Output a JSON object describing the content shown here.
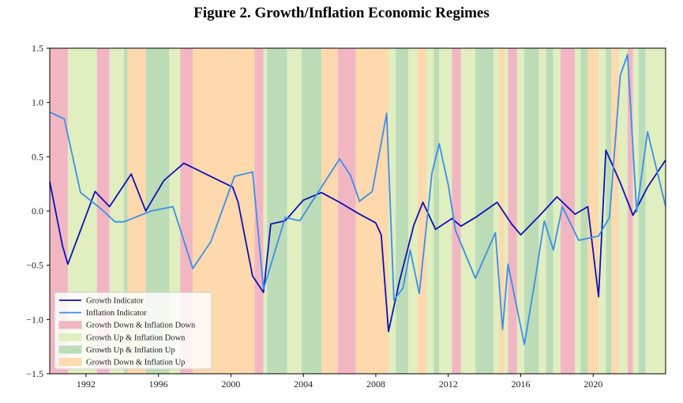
{
  "chart_data": {
    "type": "line",
    "title": "Figure 2. Growth/Inflation Economic Regimes",
    "xlim": [
      1990.0,
      2024.0
    ],
    "ylim": [
      -1.5,
      1.5
    ],
    "x_ticks": [
      1992,
      1996,
      2000,
      2004,
      2008,
      2012,
      2016,
      2020
    ],
    "y_ticks": [
      1.5,
      1.0,
      0.5,
      0.0,
      -0.5,
      -1.0,
      -1.5
    ],
    "y_tick_labels": [
      "1.5",
      "1.0",
      "0.5",
      "0.0",
      "−0.5",
      "−1.0",
      "−1.5"
    ],
    "grid": false,
    "legend_position": "lower-left",
    "regime_legend": [
      {
        "key": "gd_id",
        "label": "Growth Down & Inflation Down",
        "color": "#f2b6c3"
      },
      {
        "key": "gu_id",
        "label": "Growth Up & Inflation Down",
        "color": "#e0eec0"
      },
      {
        "key": "gu_iu",
        "label": "Growth Up & Inflation Up",
        "color": "#bcdcb8"
      },
      {
        "key": "gd_iu",
        "label": "Growth Down & Inflation Up",
        "color": "#fdd9ad"
      }
    ],
    "regimes": [
      {
        "start": 1990.0,
        "end": 1991.0,
        "key": "gd_id"
      },
      {
        "start": 1991.0,
        "end": 1992.6,
        "key": "gu_id"
      },
      {
        "start": 1992.6,
        "end": 1993.3,
        "key": "gd_id"
      },
      {
        "start": 1993.3,
        "end": 1994.1,
        "key": "gu_id"
      },
      {
        "start": 1994.1,
        "end": 1994.3,
        "key": "gu_iu"
      },
      {
        "start": 1994.3,
        "end": 1995.3,
        "key": "gd_iu"
      },
      {
        "start": 1995.3,
        "end": 1996.6,
        "key": "gu_iu"
      },
      {
        "start": 1996.6,
        "end": 1997.2,
        "key": "gu_id"
      },
      {
        "start": 1997.2,
        "end": 1997.9,
        "key": "gd_id"
      },
      {
        "start": 1997.9,
        "end": 2001.3,
        "key": "gd_iu"
      },
      {
        "start": 2001.3,
        "end": 2001.8,
        "key": "gd_id"
      },
      {
        "start": 2001.8,
        "end": 2002.0,
        "key": "gu_id"
      },
      {
        "start": 2002.0,
        "end": 2003.1,
        "key": "gu_iu"
      },
      {
        "start": 2003.1,
        "end": 2003.9,
        "key": "gu_id"
      },
      {
        "start": 2003.9,
        "end": 2005.0,
        "key": "gu_iu"
      },
      {
        "start": 2005.0,
        "end": 2005.9,
        "key": "gd_iu"
      },
      {
        "start": 2005.9,
        "end": 2006.9,
        "key": "gd_id"
      },
      {
        "start": 2006.9,
        "end": 2008.7,
        "key": "gd_iu"
      },
      {
        "start": 2008.7,
        "end": 2009.1,
        "key": "gu_id"
      },
      {
        "start": 2009.1,
        "end": 2009.8,
        "key": "gu_iu"
      },
      {
        "start": 2009.8,
        "end": 2010.3,
        "key": "gu_id"
      },
      {
        "start": 2010.3,
        "end": 2010.8,
        "key": "gd_iu"
      },
      {
        "start": 2010.8,
        "end": 2011.2,
        "key": "gu_id"
      },
      {
        "start": 2011.2,
        "end": 2011.5,
        "key": "gu_iu"
      },
      {
        "start": 2011.5,
        "end": 2012.2,
        "key": "gu_id"
      },
      {
        "start": 2012.2,
        "end": 2012.7,
        "key": "gd_id"
      },
      {
        "start": 2012.7,
        "end": 2013.5,
        "key": "gu_id"
      },
      {
        "start": 2013.5,
        "end": 2014.5,
        "key": "gu_iu"
      },
      {
        "start": 2014.5,
        "end": 2014.8,
        "key": "gu_id"
      },
      {
        "start": 2014.8,
        "end": 2015.1,
        "key": "gd_iu"
      },
      {
        "start": 2015.1,
        "end": 2015.3,
        "key": "gu_id"
      },
      {
        "start": 2015.3,
        "end": 2015.8,
        "key": "gd_id"
      },
      {
        "start": 2015.8,
        "end": 2016.2,
        "key": "gu_id"
      },
      {
        "start": 2016.2,
        "end": 2017.0,
        "key": "gu_iu"
      },
      {
        "start": 2017.0,
        "end": 2017.4,
        "key": "gu_id"
      },
      {
        "start": 2017.4,
        "end": 2017.8,
        "key": "gu_iu"
      },
      {
        "start": 2017.8,
        "end": 2018.2,
        "key": "gu_id"
      },
      {
        "start": 2018.2,
        "end": 2019.0,
        "key": "gd_id"
      },
      {
        "start": 2019.0,
        "end": 2019.3,
        "key": "gu_id"
      },
      {
        "start": 2019.3,
        "end": 2019.7,
        "key": "gu_iu"
      },
      {
        "start": 2019.7,
        "end": 2020.3,
        "key": "gd_iu"
      },
      {
        "start": 2020.3,
        "end": 2020.7,
        "key": "gu_id"
      },
      {
        "start": 2020.7,
        "end": 2021.0,
        "key": "gu_iu"
      },
      {
        "start": 2021.0,
        "end": 2021.4,
        "key": "gd_iu"
      },
      {
        "start": 2021.4,
        "end": 2021.9,
        "key": "gu_id"
      },
      {
        "start": 2021.9,
        "end": 2022.2,
        "key": "gd_id"
      },
      {
        "start": 2022.2,
        "end": 2022.5,
        "key": "gu_id"
      },
      {
        "start": 2022.5,
        "end": 2022.9,
        "key": "gu_iu"
      },
      {
        "start": 2022.9,
        "end": 2024.0,
        "key": "gu_id"
      }
    ],
    "series": [
      {
        "name": "Growth Indicator",
        "color": "#1010b4",
        "x": [
          1990.0,
          1990.7,
          1991.0,
          1992.5,
          1993.3,
          1994.5,
          1995.3,
          1996.3,
          1997.4,
          2000.1,
          2000.4,
          2001.2,
          2001.8,
          2002.2,
          2003.0,
          2004.0,
          2005.0,
          2006.0,
          2007.0,
          2008.0,
          2008.3,
          2008.7,
          2009.3,
          2010.1,
          2010.6,
          2011.3,
          2012.2,
          2012.7,
          2013.5,
          2014.7,
          2015.5,
          2016.0,
          2017.0,
          2018.0,
          2019.0,
          2019.7,
          2020.3,
          2020.7,
          2021.5,
          2022.2,
          2023.0,
          2024.0
        ],
        "y": [
          0.27,
          -0.32,
          -0.49,
          0.18,
          0.04,
          0.34,
          0.0,
          0.28,
          0.44,
          0.22,
          0.08,
          -0.6,
          -0.75,
          -0.12,
          -0.09,
          0.1,
          0.17,
          0.08,
          -0.02,
          -0.11,
          -0.22,
          -1.11,
          -0.65,
          -0.13,
          0.08,
          -0.17,
          -0.07,
          -0.14,
          -0.06,
          0.08,
          -0.12,
          -0.22,
          -0.05,
          0.13,
          -0.03,
          0.04,
          -0.79,
          0.56,
          0.26,
          -0.04,
          0.22,
          0.47
        ]
      },
      {
        "name": "Inflation Indicator",
        "color": "#3b8fe8",
        "x": [
          1990.0,
          1990.8,
          1991.7,
          1992.9,
          1993.6,
          1994.1,
          1995.6,
          1996.8,
          1997.9,
          1998.9,
          2000.2,
          2001.2,
          2001.8,
          2003.0,
          2003.8,
          2006.0,
          2006.6,
          2007.1,
          2007.8,
          2008.6,
          2009.0,
          2009.5,
          2009.9,
          2010.4,
          2011.1,
          2011.5,
          2012.0,
          2012.4,
          2013.5,
          2014.6,
          2015.0,
          2015.3,
          2016.2,
          2016.8,
          2017.3,
          2017.8,
          2018.3,
          2019.2,
          2020.3,
          2020.9,
          2021.5,
          2021.9,
          2022.4,
          2023.0,
          2024.0
        ],
        "y": [
          0.91,
          0.85,
          0.17,
          0.01,
          -0.1,
          -0.1,
          0.0,
          0.04,
          -0.53,
          -0.28,
          0.32,
          0.36,
          -0.72,
          -0.06,
          -0.09,
          0.48,
          0.33,
          0.09,
          0.18,
          0.9,
          -0.82,
          -0.71,
          -0.36,
          -0.76,
          0.35,
          0.62,
          0.24,
          -0.18,
          -0.62,
          -0.2,
          -1.09,
          -0.49,
          -1.23,
          -0.63,
          -0.09,
          -0.36,
          0.04,
          -0.27,
          -0.23,
          -0.06,
          1.25,
          1.44,
          -0.01,
          0.73,
          0.04
        ]
      }
    ]
  }
}
